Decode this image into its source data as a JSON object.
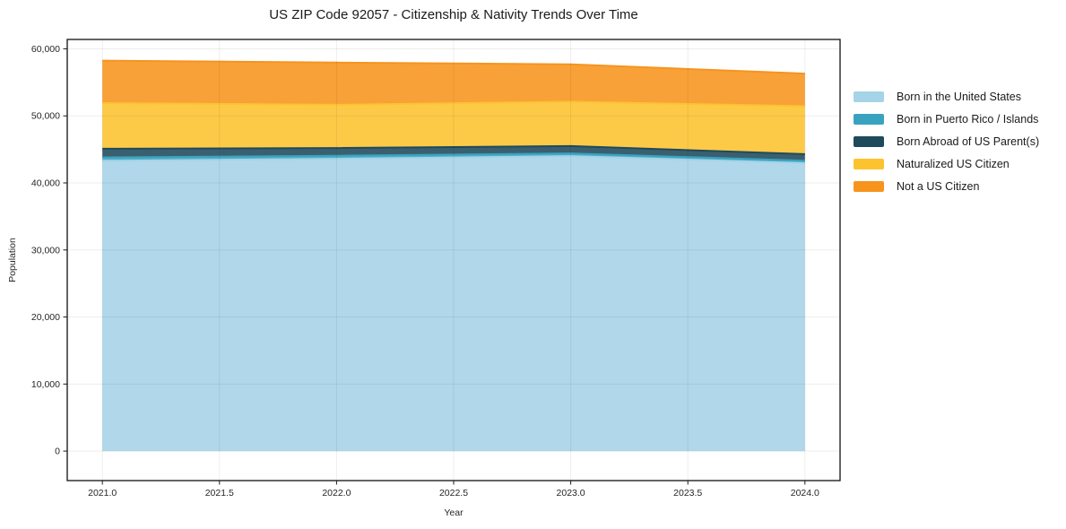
{
  "chart_data": {
    "type": "area",
    "stacked": true,
    "title": "US ZIP Code 92057 - Citizenship & Nativity Trends Over Time",
    "xlabel": "Year",
    "ylabel": "Population",
    "x": [
      2021,
      2022,
      2023,
      2024
    ],
    "series": [
      {
        "name": "Born in the United States",
        "color": "#A5D3E7",
        "values": [
          43300,
          43600,
          44000,
          42950
        ]
      },
      {
        "name": "Born in Puerto Rico / Islands",
        "color": "#39A3BF",
        "values": [
          500,
          450,
          400,
          350
        ]
      },
      {
        "name": "Born Abroad of US Parent(s)",
        "color": "#1F4A5C",
        "values": [
          1300,
          1150,
          1100,
          1000
        ]
      },
      {
        "name": "Naturalized US Citizen",
        "color": "#FDC32F",
        "values": [
          6800,
          6450,
          6600,
          7150
        ]
      },
      {
        "name": "Not a US Citizen",
        "color": "#F7941E",
        "values": [
          6350,
          6300,
          5600,
          4850
        ]
      }
    ],
    "stack_totals": [
      58250,
      57950,
      57700,
      56300
    ],
    "xlim": [
      2020.85,
      2024.15
    ],
    "ylim": [
      -4400,
      61400
    ],
    "xticks": [
      {
        "value": 2021.0,
        "label": "2021.0"
      },
      {
        "value": 2021.5,
        "label": "2021.5"
      },
      {
        "value": 2022.0,
        "label": "2022.0"
      },
      {
        "value": 2022.5,
        "label": "2022.5"
      },
      {
        "value": 2023.0,
        "label": "2023.0"
      },
      {
        "value": 2023.5,
        "label": "2023.5"
      },
      {
        "value": 2024.0,
        "label": "2024.0"
      }
    ],
    "yticks": [
      {
        "value": 0,
        "label": "0"
      },
      {
        "value": 10000,
        "label": "10,000"
      },
      {
        "value": 20000,
        "label": "20,000"
      },
      {
        "value": 30000,
        "label": "30,000"
      },
      {
        "value": 40000,
        "label": "40,000"
      },
      {
        "value": 50000,
        "label": "50,000"
      },
      {
        "value": 60000,
        "label": "60,000"
      }
    ],
    "grid": true,
    "legend_position": "right-outside"
  }
}
